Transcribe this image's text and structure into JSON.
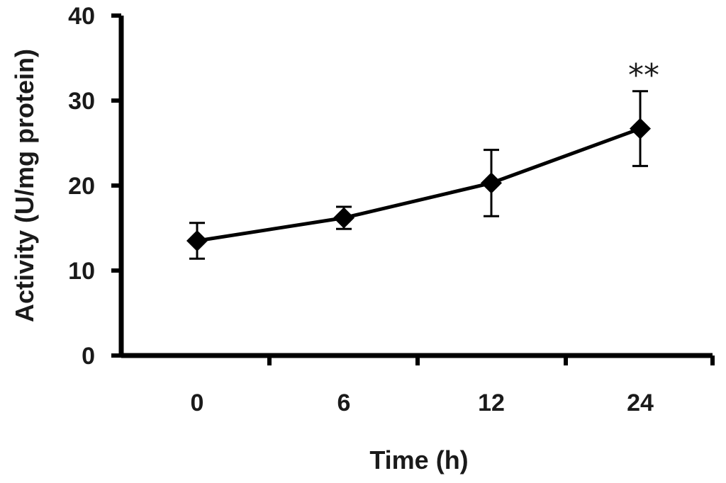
{
  "chart_data": {
    "type": "line",
    "title": "",
    "xlabel": "Time  (h)",
    "ylabel": "Activity (U/mg protein)",
    "categories": [
      "0",
      "6",
      "12",
      "24"
    ],
    "series": [
      {
        "name": "Activity",
        "values": [
          13.5,
          16.2,
          20.3,
          26.7
        ],
        "error": [
          2.1,
          1.3,
          3.9,
          4.4
        ]
      }
    ],
    "ylim": [
      0,
      40
    ],
    "yticks": [
      "0",
      "10",
      "20",
      "30",
      "40"
    ],
    "ytick_values": [
      0,
      10,
      20,
      30,
      40
    ],
    "annotations": [
      {
        "text": "**",
        "category_index": 3
      }
    ],
    "color": "#000000"
  }
}
